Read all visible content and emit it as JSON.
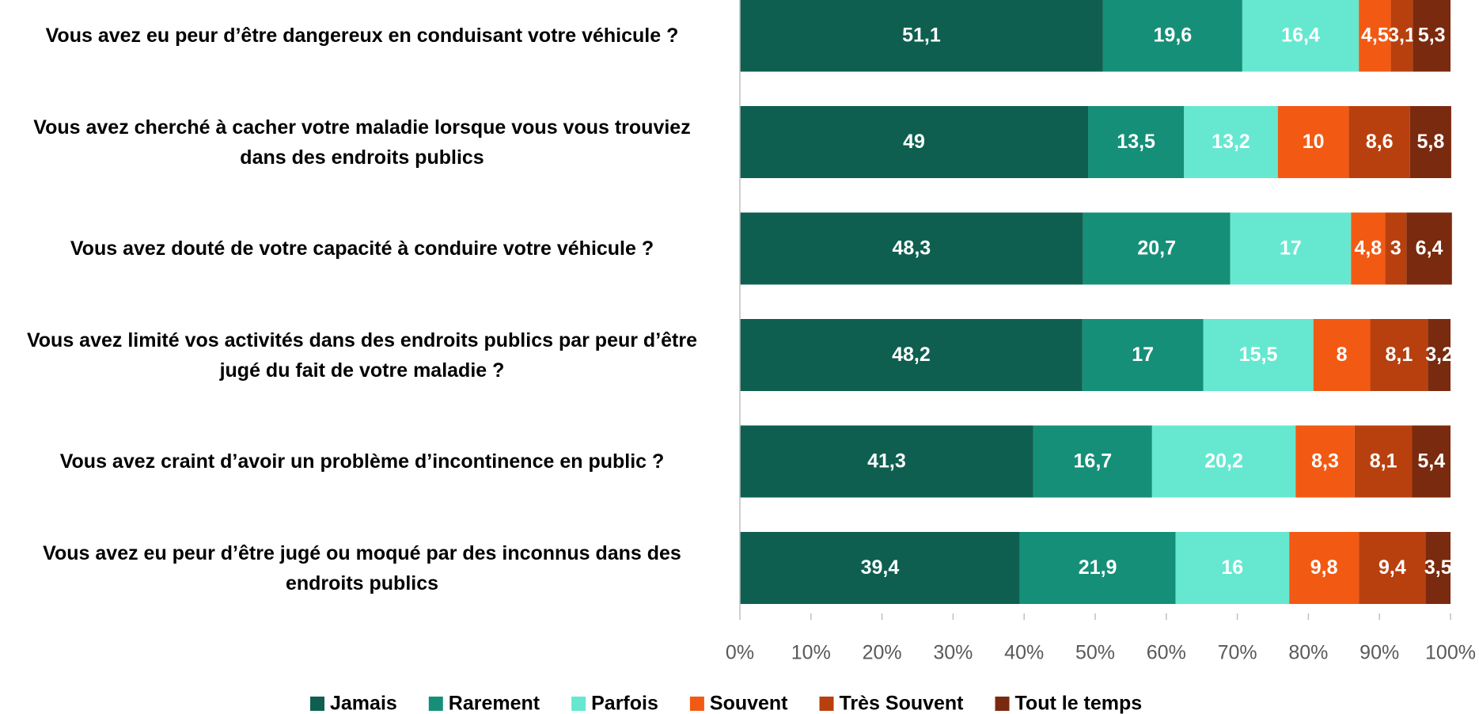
{
  "chart_data": {
    "type": "stacked_barh",
    "categories": [
      "Vous avez eu peur d’être dangereux en conduisant  votre véhicule ?",
      "Vous avez cherché à cacher votre maladie lorsque vous vous trouviez dans des endroits publics",
      "Vous avez douté de votre capacité à conduire votre véhicule ?",
      "Vous avez limité vos activités dans des endroits publics par peur d’être jugé  du fait de votre maladie ?",
      "Vous avez craint d’avoir un problème d’incontinence en public ?",
      "Vous avez eu peur d’être jugé ou moqué par des inconnus dans des endroits publics"
    ],
    "series": [
      {
        "name": "Jamais",
        "color": "#0e5f50",
        "values": [
          51.1,
          49,
          48.3,
          48.2,
          41.3,
          39.4
        ],
        "value_labels": [
          "51,1",
          "49",
          "48,3",
          "48,2",
          "41,3",
          "39,4"
        ]
      },
      {
        "name": "Rarement",
        "color": "#168f78",
        "values": [
          19.6,
          13.5,
          20.7,
          17,
          16.7,
          21.9
        ],
        "value_labels": [
          "19,6",
          "13,5",
          "20,7",
          "17",
          "16,7",
          "21,9"
        ]
      },
      {
        "name": "Parfois",
        "color": "#66e8d0",
        "values": [
          16.4,
          13.2,
          17,
          15.5,
          20.2,
          16
        ],
        "value_labels": [
          "16,4",
          "13,2",
          "17",
          "15,5",
          "20,2",
          "16"
        ]
      },
      {
        "name": "Souvent",
        "color": "#f25a14",
        "values": [
          4.5,
          10,
          4.8,
          8,
          8.3,
          9.8
        ],
        "value_labels": [
          "4,5",
          "10",
          "4,8",
          "8",
          "8,3",
          "9,8"
        ]
      },
      {
        "name": "Très Souvent",
        "color": "#b8400f",
        "values": [
          3.1,
          8.6,
          3,
          8.1,
          8.1,
          9.4
        ],
        "value_labels": [
          "3,1",
          "8,6",
          "3",
          "8,1",
          "8,1",
          "9,4"
        ]
      },
      {
        "name": "Tout le temps",
        "color": "#7a2a0e",
        "values": [
          5.3,
          5.8,
          6.4,
          3.2,
          5.4,
          3.5
        ],
        "value_labels": [
          "5,3",
          "5,8",
          "6,4",
          "3,2",
          "5,4",
          "3,5"
        ]
      }
    ],
    "xlim": [
      0,
      100
    ],
    "xticks": [
      {
        "value": 0,
        "label": "0%"
      },
      {
        "value": 10,
        "label": "10%"
      },
      {
        "value": 20,
        "label": "20%"
      },
      {
        "value": 30,
        "label": "30%"
      },
      {
        "value": 40,
        "label": "40%"
      },
      {
        "value": 50,
        "label": "50%"
      },
      {
        "value": 60,
        "label": "60%"
      },
      {
        "value": 70,
        "label": "70%"
      },
      {
        "value": 80,
        "label": "80%"
      },
      {
        "value": 90,
        "label": "90%"
      },
      {
        "value": 100,
        "label": "100%"
      }
    ],
    "legend": "bottom"
  }
}
